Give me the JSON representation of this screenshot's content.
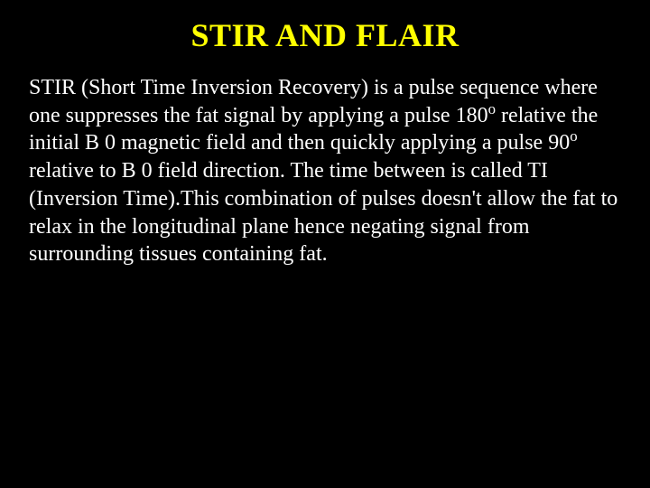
{
  "slide": {
    "title": "STIR AND FLAIR",
    "body_parts": {
      "p1": "STIR (Short Time Inversion Recovery) is a pulse sequence where one suppresses the fat signal by applying a pulse 180",
      "sup1": "o",
      "p2": " relative the initial B 0 magnetic field and then quickly applying a pulse 90",
      "sup2": "o",
      "p3": " relative to B 0 field direction. The time between is called TI (Inversion Time).This combination of pulses doesn't allow the fat to relax in the longitudinal plane hence negating signal from surrounding tissues containing fat."
    }
  },
  "style": {
    "background_color": "#000000",
    "title_color": "#ffff00",
    "body_color": "#ffffff",
    "title_fontsize": 36,
    "body_fontsize": 24,
    "font_family": "Times New Roman"
  }
}
